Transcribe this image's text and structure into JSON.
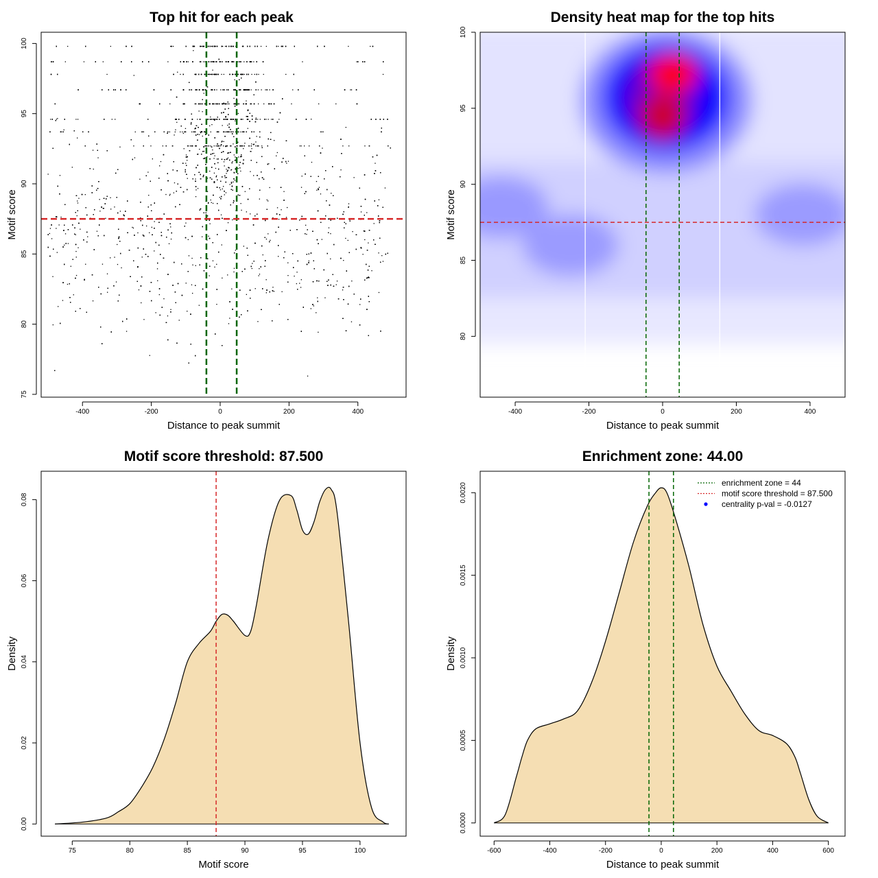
{
  "colors": {
    "fill": "#f5deb3",
    "green": "#006400",
    "red": "#d62728",
    "blue": "#0000ff",
    "heat_red": "#cc0033",
    "points": "#000000"
  },
  "chart_data": [
    {
      "type": "scatter",
      "title": "Top hit for each peak",
      "xlabel": "Distance to peak summit",
      "ylabel": "Motif score",
      "xlim": [
        -520,
        540
      ],
      "ylim": [
        74.8,
        100.8
      ],
      "xticks": [
        -400,
        -200,
        0,
        200,
        400
      ],
      "yticks": [
        75,
        80,
        85,
        90,
        95,
        100
      ],
      "vlines": [
        -40,
        48
      ],
      "hline": 87.5,
      "n_points": 5200,
      "distribution": {
        "x_range": [
          -500,
          495
        ],
        "y_range": [
          75,
          100
        ],
        "dense_center": [
          -40,
          48
        ],
        "discrete_scores": [
          99.8,
          98.7,
          97.8,
          96.7,
          95.7,
          94.6,
          93.7,
          92.7
        ]
      }
    },
    {
      "type": "heatmap",
      "title": "Density heat map for the top hits",
      "xlabel": "Distance to peak summit",
      "ylabel": "Motif score",
      "xlim": [
        -495,
        495
      ],
      "ylim": [
        76,
        100
      ],
      "xticks": [
        -400,
        -200,
        0,
        200,
        400
      ],
      "yticks": [
        80,
        85,
        90,
        95,
        100
      ],
      "vlines": [
        -45,
        45
      ],
      "hline": 87.5,
      "white_lines": [
        -210,
        155
      ],
      "colormap": [
        "#ffffff",
        "#0000ff",
        "#ff0000"
      ],
      "peaks": [
        {
          "x": 10,
          "y": 97.3,
          "weight": 1.0
        },
        {
          "x": 10,
          "y": 94.5,
          "weight": 0.9
        },
        {
          "x": -440,
          "y": 88.5,
          "weight": 0.35
        },
        {
          "x": -250,
          "y": 86,
          "weight": 0.25
        },
        {
          "x": 380,
          "y": 88.0,
          "weight": 0.25
        }
      ]
    },
    {
      "type": "area",
      "title": "Motif score threshold: 87.500",
      "xlabel": "Motif score",
      "ylabel": "Density",
      "xlim": [
        72.3,
        104.0
      ],
      "ylim": [
        -0.003,
        0.087
      ],
      "xticks": [
        75,
        80,
        85,
        90,
        95,
        100
      ],
      "yticks": [
        0.0,
        0.02,
        0.04,
        0.06,
        0.08
      ],
      "ytick_labels": [
        "0.00",
        "0.02",
        "0.04",
        "0.06",
        "0.08"
      ],
      "vline": 87.5,
      "x": [
        73.5,
        76,
        78,
        79,
        80,
        81,
        82,
        83,
        84,
        85,
        86,
        87,
        87.5,
        88,
        88.5,
        89,
        90,
        90.5,
        91,
        92,
        93,
        94,
        94.5,
        95,
        95.5,
        96,
        96.5,
        97,
        97.5,
        98,
        99,
        100,
        101,
        102,
        102.5
      ],
      "y": [
        0.0,
        0.0005,
        0.0015,
        0.003,
        0.005,
        0.009,
        0.014,
        0.021,
        0.03,
        0.04,
        0.0445,
        0.0475,
        0.05,
        0.0517,
        0.0515,
        0.05,
        0.0465,
        0.0475,
        0.054,
        0.07,
        0.0798,
        0.081,
        0.0775,
        0.0725,
        0.0715,
        0.0745,
        0.0795,
        0.0825,
        0.0825,
        0.077,
        0.05,
        0.02,
        0.004,
        0.0005,
        0.0
      ]
    },
    {
      "type": "area",
      "title": "Enrichment zone: 44.00",
      "xlabel": "Distance to peak summit",
      "ylabel": "Density",
      "xlim": [
        -650,
        660
      ],
      "ylim": [
        -8e-05,
        0.00213
      ],
      "xticks": [
        -600,
        -400,
        -200,
        0,
        200,
        400,
        600
      ],
      "yticks": [
        0.0,
        0.0005,
        0.001,
        0.0015,
        0.002
      ],
      "ytick_labels": [
        "0.0000",
        "0.0005",
        "0.0010",
        "0.0015",
        "0.0020"
      ],
      "vlines": [
        -44,
        44
      ],
      "x": [
        -600,
        -560,
        -520,
        -500,
        -480,
        -450,
        -400,
        -350,
        -300,
        -250,
        -200,
        -150,
        -100,
        -50,
        -20,
        0,
        20,
        50,
        100,
        150,
        200,
        250,
        300,
        350,
        400,
        450,
        480,
        500,
        530,
        560,
        600
      ],
      "y": [
        0.0,
        5e-05,
        0.00028,
        0.0004,
        0.0005,
        0.00057,
        0.0006,
        0.00063,
        0.00068,
        0.00085,
        0.0011,
        0.0014,
        0.0017,
        0.00192,
        0.002,
        0.00203,
        0.002,
        0.00185,
        0.00155,
        0.0012,
        0.00095,
        0.0008,
        0.00066,
        0.00056,
        0.00053,
        0.00048,
        0.0004,
        0.0003,
        0.00014,
        4e-05,
        0.0
      ],
      "legend": {
        "position": "top-right",
        "entries": [
          {
            "label": "enrichment zone = 44",
            "style": "dotted",
            "color": "#006400"
          },
          {
            "label": "motif score threshold = 87.500",
            "style": "dotted",
            "color": "#d62728"
          },
          {
            "label": "centrality p-val = -0.0127",
            "style": "point",
            "color": "#0000ff"
          }
        ]
      }
    }
  ]
}
